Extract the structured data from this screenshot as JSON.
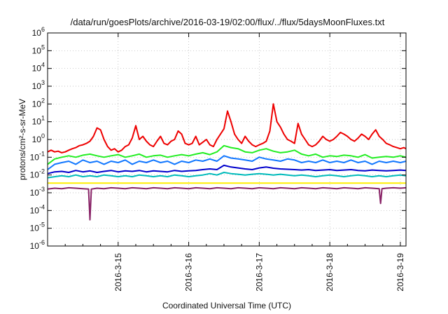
{
  "chart_data": {
    "type": "line",
    "title": "/data/run/goesPlots/archive/2016-03-19/02:00/flux/../flux/5daysMoonFluxes.txt",
    "xlabel": "Coordinated Universal Time (UTC)",
    "ylabel": "protons/cm²-s-sr-MeV",
    "yscale": "log",
    "ylim": [
      1e-06,
      1000000.0
    ],
    "xlim": [
      0,
      5.08
    ],
    "x_units": "days after 2016-03-14 00:00 UTC",
    "grid": true,
    "y_ticks": [
      {
        "value": 1e-06,
        "base": "10",
        "exp": "-6"
      },
      {
        "value": 1e-05,
        "base": "10",
        "exp": "-5"
      },
      {
        "value": 0.0001,
        "base": "10",
        "exp": "-4"
      },
      {
        "value": 0.001,
        "base": "10",
        "exp": "-3"
      },
      {
        "value": 0.01,
        "base": "10",
        "exp": "-2"
      },
      {
        "value": 0.1,
        "base": "10",
        "exp": "-1"
      },
      {
        "value": 1.0,
        "base": "10",
        "exp": "0"
      },
      {
        "value": 10.0,
        "base": "10",
        "exp": "1"
      },
      {
        "value": 100.0,
        "base": "10",
        "exp": "2"
      },
      {
        "value": 1000.0,
        "base": "10",
        "exp": "3"
      },
      {
        "value": 10000.0,
        "base": "10",
        "exp": "4"
      },
      {
        "value": 100000.0,
        "base": "10",
        "exp": "5"
      },
      {
        "value": 1000000.0,
        "base": "10",
        "exp": "6"
      }
    ],
    "x_ticks": [
      {
        "value": 1,
        "label": "2016-3-15"
      },
      {
        "value": 2,
        "label": "2016-3-16"
      },
      {
        "value": 3,
        "label": "2016-3-17"
      },
      {
        "value": 4,
        "label": "2016-3-18"
      },
      {
        "value": 5,
        "label": "2016-3-19"
      }
    ],
    "series": [
      {
        "color": "#ee0000",
        "x": [
          0,
          0.05,
          0.1,
          0.15,
          0.2,
          0.25,
          0.3,
          0.35,
          0.4,
          0.45,
          0.5,
          0.55,
          0.6,
          0.65,
          0.7,
          0.75,
          0.8,
          0.85,
          0.9,
          0.95,
          1.0,
          1.05,
          1.1,
          1.15,
          1.2,
          1.25,
          1.3,
          1.35,
          1.4,
          1.45,
          1.5,
          1.55,
          1.6,
          1.65,
          1.7,
          1.75,
          1.8,
          1.85,
          1.9,
          1.95,
          2.0,
          2.05,
          2.1,
          2.15,
          2.2,
          2.25,
          2.3,
          2.35,
          2.4,
          2.45,
          2.5,
          2.55,
          2.6,
          2.65,
          2.7,
          2.75,
          2.8,
          2.85,
          2.9,
          2.95,
          3.0,
          3.05,
          3.1,
          3.15,
          3.2,
          3.25,
          3.3,
          3.35,
          3.4,
          3.45,
          3.5,
          3.55,
          3.6,
          3.65,
          3.7,
          3.75,
          3.8,
          3.85,
          3.9,
          3.95,
          4.0,
          4.05,
          4.1,
          4.15,
          4.2,
          4.25,
          4.3,
          4.35,
          4.4,
          4.45,
          4.5,
          4.55,
          4.6,
          4.65,
          4.7,
          4.75,
          4.8,
          4.85,
          4.9,
          4.95,
          5.0,
          5.05,
          5.08
        ],
        "y": [
          0.2,
          0.25,
          0.2,
          0.22,
          0.18,
          0.2,
          0.25,
          0.3,
          0.35,
          0.45,
          0.5,
          0.6,
          0.8,
          1.5,
          4.5,
          3.5,
          1.0,
          0.4,
          0.25,
          0.3,
          0.2,
          0.25,
          0.4,
          0.5,
          1.2,
          6.0,
          1.0,
          1.5,
          0.8,
          0.5,
          0.4,
          0.8,
          1.5,
          0.6,
          0.5,
          0.8,
          1.0,
          3.0,
          2.0,
          0.6,
          0.5,
          0.6,
          1.5,
          0.5,
          0.7,
          1.0,
          0.5,
          0.4,
          1.0,
          2.0,
          4.0,
          40.0,
          10.0,
          2.0,
          1.0,
          0.6,
          1.5,
          0.8,
          0.5,
          0.4,
          0.5,
          0.6,
          0.8,
          3.0,
          100.0,
          10.0,
          5.0,
          2.0,
          1.0,
          0.8,
          0.6,
          8.0,
          2.0,
          1.0,
          0.5,
          0.4,
          0.5,
          0.8,
          1.5,
          1.0,
          0.8,
          1.0,
          1.5,
          2.5,
          2.0,
          1.5,
          1.0,
          0.8,
          1.2,
          2.0,
          1.5,
          1.0,
          2.0,
          3.5,
          1.5,
          1.0,
          0.6,
          0.5,
          0.4,
          0.35,
          0.3,
          0.35,
          0.3
        ]
      },
      {
        "color": "#22ee22",
        "x": [
          0,
          0.1,
          0.2,
          0.3,
          0.4,
          0.5,
          0.6,
          0.7,
          0.8,
          0.9,
          1.0,
          1.1,
          1.2,
          1.3,
          1.4,
          1.5,
          1.6,
          1.7,
          1.8,
          1.9,
          2.0,
          2.1,
          2.2,
          2.3,
          2.4,
          2.5,
          2.6,
          2.7,
          2.8,
          2.9,
          3.0,
          3.1,
          3.2,
          3.3,
          3.4,
          3.5,
          3.6,
          3.7,
          3.8,
          3.9,
          4.0,
          4.1,
          4.2,
          4.3,
          4.4,
          4.5,
          4.6,
          4.7,
          4.8,
          4.9,
          5.0,
          5.08
        ],
        "y": [
          0.04,
          0.08,
          0.1,
          0.12,
          0.1,
          0.13,
          0.15,
          0.12,
          0.1,
          0.12,
          0.14,
          0.1,
          0.12,
          0.15,
          0.1,
          0.12,
          0.13,
          0.1,
          0.12,
          0.14,
          0.12,
          0.15,
          0.18,
          0.14,
          0.2,
          0.45,
          0.35,
          0.3,
          0.2,
          0.18,
          0.25,
          0.3,
          0.22,
          0.18,
          0.2,
          0.25,
          0.15,
          0.12,
          0.15,
          0.1,
          0.12,
          0.11,
          0.13,
          0.12,
          0.1,
          0.14,
          0.09,
          0.1,
          0.11,
          0.1,
          0.12,
          0.1
        ]
      },
      {
        "color": "#1177ff",
        "x": [
          0,
          0.1,
          0.2,
          0.3,
          0.4,
          0.5,
          0.6,
          0.7,
          0.8,
          0.9,
          1.0,
          1.1,
          1.2,
          1.3,
          1.4,
          1.5,
          1.6,
          1.7,
          1.8,
          1.9,
          2.0,
          2.1,
          2.2,
          2.3,
          2.4,
          2.5,
          2.6,
          2.7,
          2.8,
          2.9,
          3.0,
          3.1,
          3.2,
          3.3,
          3.4,
          3.5,
          3.6,
          3.7,
          3.8,
          3.9,
          4.0,
          4.1,
          4.2,
          4.3,
          4.4,
          4.5,
          4.6,
          4.7,
          4.8,
          4.9,
          5.0,
          5.08
        ],
        "y": [
          0.02,
          0.04,
          0.05,
          0.06,
          0.04,
          0.07,
          0.05,
          0.06,
          0.04,
          0.06,
          0.05,
          0.07,
          0.04,
          0.06,
          0.05,
          0.07,
          0.05,
          0.06,
          0.04,
          0.06,
          0.05,
          0.07,
          0.06,
          0.08,
          0.06,
          0.12,
          0.09,
          0.08,
          0.07,
          0.06,
          0.1,
          0.08,
          0.07,
          0.06,
          0.08,
          0.07,
          0.05,
          0.06,
          0.05,
          0.07,
          0.05,
          0.06,
          0.05,
          0.07,
          0.05,
          0.06,
          0.04,
          0.06,
          0.05,
          0.06,
          0.05,
          0.06
        ]
      },
      {
        "color": "#0000cc",
        "x": [
          0,
          0.1,
          0.2,
          0.3,
          0.4,
          0.5,
          0.6,
          0.7,
          0.8,
          0.9,
          1.0,
          1.1,
          1.2,
          1.3,
          1.4,
          1.5,
          1.6,
          1.7,
          1.8,
          1.9,
          2.0,
          2.1,
          2.2,
          2.3,
          2.4,
          2.5,
          2.6,
          2.7,
          2.8,
          2.9,
          3.0,
          3.1,
          3.2,
          3.3,
          3.4,
          3.5,
          3.6,
          3.7,
          3.8,
          3.9,
          4.0,
          4.1,
          4.2,
          4.3,
          4.4,
          4.5,
          4.6,
          4.7,
          4.8,
          4.9,
          5.0,
          5.08
        ],
        "y": [
          0.012,
          0.015,
          0.016,
          0.014,
          0.018,
          0.015,
          0.017,
          0.014,
          0.016,
          0.018,
          0.015,
          0.017,
          0.016,
          0.018,
          0.015,
          0.017,
          0.016,
          0.015,
          0.018,
          0.016,
          0.017,
          0.018,
          0.02,
          0.022,
          0.02,
          0.035,
          0.028,
          0.025,
          0.022,
          0.02,
          0.025,
          0.028,
          0.024,
          0.022,
          0.021,
          0.02,
          0.019,
          0.02,
          0.018,
          0.019,
          0.02,
          0.018,
          0.019,
          0.02,
          0.018,
          0.017,
          0.019,
          0.018,
          0.017,
          0.018,
          0.019,
          0.018
        ]
      },
      {
        "color": "#00bbbb",
        "x": [
          0,
          0.1,
          0.2,
          0.3,
          0.4,
          0.5,
          0.6,
          0.7,
          0.8,
          0.9,
          1.0,
          1.1,
          1.2,
          1.3,
          1.4,
          1.5,
          1.6,
          1.7,
          1.8,
          1.9,
          2.0,
          2.1,
          2.2,
          2.3,
          2.4,
          2.5,
          2.6,
          2.7,
          2.8,
          2.9,
          3.0,
          3.1,
          3.2,
          3.3,
          3.4,
          3.5,
          3.6,
          3.7,
          3.8,
          3.9,
          4.0,
          4.1,
          4.2,
          4.3,
          4.4,
          4.5,
          4.6,
          4.7,
          4.8,
          4.9,
          5.0,
          5.08
        ],
        "y": [
          0.007,
          0.008,
          0.009,
          0.008,
          0.01,
          0.008,
          0.009,
          0.008,
          0.01,
          0.009,
          0.008,
          0.009,
          0.008,
          0.01,
          0.009,
          0.008,
          0.009,
          0.008,
          0.01,
          0.009,
          0.008,
          0.009,
          0.01,
          0.012,
          0.01,
          0.014,
          0.012,
          0.011,
          0.01,
          0.011,
          0.012,
          0.011,
          0.01,
          0.011,
          0.01,
          0.009,
          0.01,
          0.009,
          0.008,
          0.009,
          0.01,
          0.009,
          0.008,
          0.009,
          0.01,
          0.009,
          0.008,
          0.009,
          0.008,
          0.009,
          0.01,
          0.009
        ]
      },
      {
        "color": "#ffee00",
        "x": [
          0,
          0.5,
          1.0,
          1.5,
          2.0,
          2.5,
          3.0,
          3.5,
          4.0,
          4.5,
          5.0,
          5.08
        ],
        "y": [
          0.0035,
          0.0035,
          0.0035,
          0.0035,
          0.0035,
          0.0035,
          0.0035,
          0.0035,
          0.0035,
          0.0035,
          0.0035,
          0.0035
        ]
      },
      {
        "color": "#882266",
        "x": [
          0,
          0.1,
          0.2,
          0.3,
          0.4,
          0.5,
          0.58,
          0.6,
          0.62,
          0.7,
          0.8,
          0.9,
          1.0,
          1.1,
          1.2,
          1.3,
          1.4,
          1.5,
          1.6,
          1.7,
          1.8,
          1.9,
          2.0,
          2.1,
          2.2,
          2.3,
          2.4,
          2.5,
          2.6,
          2.7,
          2.8,
          2.9,
          3.0,
          3.1,
          3.2,
          3.3,
          3.4,
          3.5,
          3.6,
          3.7,
          3.8,
          3.9,
          4.0,
          4.1,
          4.2,
          4.3,
          4.4,
          4.5,
          4.6,
          4.7,
          4.72,
          4.74,
          4.8,
          4.9,
          5.0,
          5.08
        ],
        "y": [
          0.0016,
          0.0018,
          0.0017,
          0.0019,
          0.0018,
          0.0017,
          0.0016,
          3e-05,
          0.0016,
          0.0018,
          0.0017,
          0.0019,
          0.0018,
          0.0017,
          0.0019,
          0.0018,
          0.0017,
          0.0019,
          0.0018,
          0.0017,
          0.0019,
          0.0018,
          0.0017,
          0.0019,
          0.0018,
          0.0017,
          0.0019,
          0.0018,
          0.0017,
          0.0019,
          0.0018,
          0.0017,
          0.0019,
          0.0018,
          0.0017,
          0.0019,
          0.0018,
          0.0017,
          0.0019,
          0.0018,
          0.0017,
          0.0019,
          0.0018,
          0.0017,
          0.0019,
          0.0018,
          0.0017,
          0.0019,
          0.0018,
          0.0017,
          0.00025,
          0.0017,
          0.0018,
          0.0019,
          0.0018,
          0.0019
        ]
      }
    ]
  }
}
